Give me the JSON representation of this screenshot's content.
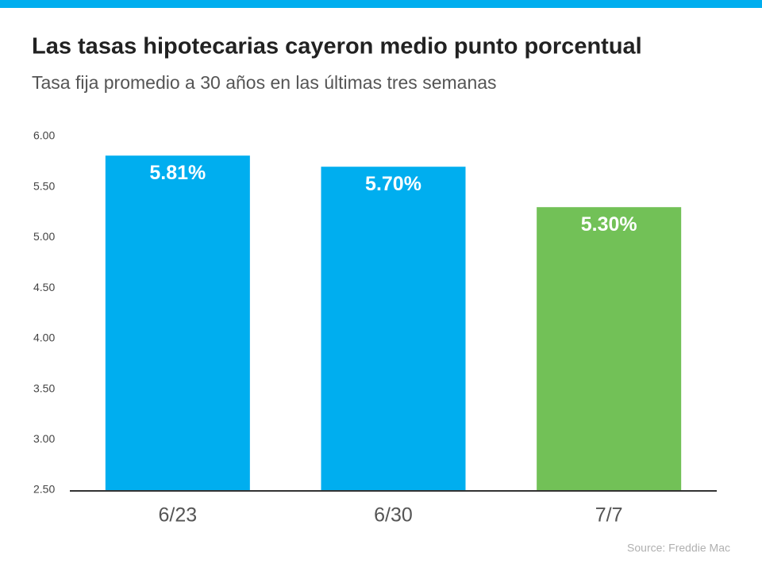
{
  "chart_data": {
    "type": "bar",
    "title": "Las tasas hipotecarias cayeron medio punto porcentual",
    "subtitle": "Tasa fija promedio a 30 años en las últimas tres semanas",
    "categories": [
      "6/23",
      "6/30",
      "7/7"
    ],
    "values": [
      5.81,
      5.7,
      5.3
    ],
    "value_labels": [
      "5.81%",
      "5.70%",
      "5.30%"
    ],
    "colors": [
      "#00aeef",
      "#00aeef",
      "#72c157"
    ],
    "ylim": [
      2.5,
      6
    ],
    "yticks": [
      {
        "value": 2.5,
        "label": "2.50"
      },
      {
        "value": 3,
        "label": "3.00"
      },
      {
        "value": 3.5,
        "label": "3.50"
      },
      {
        "value": 4,
        "label": "4.00"
      },
      {
        "value": 4.5,
        "label": "4.50"
      },
      {
        "value": 5,
        "label": "5.00"
      },
      {
        "value": 5.5,
        "label": "5.50"
      },
      {
        "value": 6,
        "label": "6.00"
      }
    ],
    "grid": false,
    "source": "Source: Freddie Mac"
  }
}
